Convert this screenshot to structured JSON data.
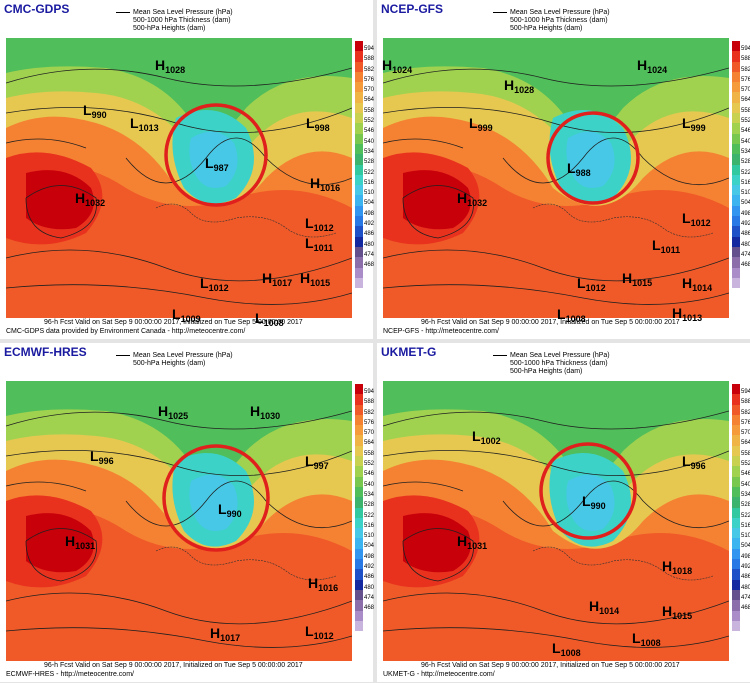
{
  "colors": {
    "colorbar": [
      "#c8000a",
      "#e8321e",
      "#f05a28",
      "#f58232",
      "#f59b3c",
      "#f0b446",
      "#e6c850",
      "#c8d250",
      "#a0d250",
      "#78c850",
      "#50be5a",
      "#3cb46e",
      "#32c8a0",
      "#3cd2c8",
      "#46c8e6",
      "#3cb4f0",
      "#3296f0",
      "#2878e6",
      "#1e50c8",
      "#1428a0",
      "#64508c",
      "#8c6eaa",
      "#aa8cc8",
      "#c8b4dc",
      "#ffffff"
    ],
    "circle": "#e0201c",
    "label": "#1a1aa0"
  },
  "colorbar_labels": [
    "594",
    "588",
    "582",
    "576",
    "570",
    "564",
    "558",
    "552",
    "546",
    "540",
    "534",
    "528",
    "522",
    "516",
    "510",
    "504",
    "498",
    "492",
    "486",
    "480",
    "474",
    "468"
  ],
  "panels": [
    {
      "name": "CMC-GDPS",
      "legend": [
        "Mean Sea Level Pressure (hPa)",
        "500-1000 hPa Thickness (dam)",
        "500-hPa Heights (dam)"
      ],
      "footer1": "96-h Fcst Valid on Sat Sep  9 00:00:00 2017, Initialized on Tue Sep  5 00:00:00 2017",
      "footer2": "CMC-GDPS data provided by Environment Canada - http://meteocentre.com/",
      "pressure_centers": [
        {
          "type": "H",
          "value": "1028"
        },
        {
          "type": "L",
          "value": "990"
        },
        {
          "type": "L",
          "value": "1013"
        },
        {
          "type": "L",
          "value": "998"
        },
        {
          "type": "L",
          "value": "987"
        },
        {
          "type": "H",
          "value": "1032"
        },
        {
          "type": "H",
          "value": "1016"
        },
        {
          "type": "L",
          "value": "1012"
        },
        {
          "type": "L",
          "value": "1011"
        },
        {
          "type": "L",
          "value": "1012"
        },
        {
          "type": "H",
          "value": "1017"
        },
        {
          "type": "H",
          "value": "1015"
        },
        {
          "type": "L",
          "value": "1009"
        },
        {
          "type": "L",
          "value": "1008"
        }
      ]
    },
    {
      "name": "NCEP-GFS",
      "legend": [
        "Mean Sea Level Pressure (hPa)",
        "500-1000 hPa Thickness (dam)",
        "500-hPa Heights (dam)"
      ],
      "footer1": "96-h Fcst Valid on Sat Sep  9 00:00:00 2017, Initialized on Tue Sep  5 00:00:00 2017",
      "footer2": "NCEP-GFS - http://meteocentre.com/",
      "pressure_centers": [
        {
          "type": "H",
          "value": "1024"
        },
        {
          "type": "H",
          "value": "1028"
        },
        {
          "type": "H",
          "value": "1024"
        },
        {
          "type": "L",
          "value": "999"
        },
        {
          "type": "L",
          "value": "999"
        },
        {
          "type": "L",
          "value": "988"
        },
        {
          "type": "H",
          "value": "1032"
        },
        {
          "type": "L",
          "value": "1012"
        },
        {
          "type": "L",
          "value": "1011"
        },
        {
          "type": "L",
          "value": "1012"
        },
        {
          "type": "H",
          "value": "1015"
        },
        {
          "type": "H",
          "value": "1014"
        },
        {
          "type": "L",
          "value": "1008"
        },
        {
          "type": "H",
          "value": "1013"
        }
      ]
    },
    {
      "name": "ECMWF-HRES",
      "legend": [
        "Mean Sea Level Pressure (hPa)",
        "500-hPa Heights (dam)"
      ],
      "footer1": "96-h Fcst Valid on Sat Sep  9 00:00:00 2017, Initialized on Tue Sep  5 00:00:00 2017",
      "footer2": "ECMWF-HRES - http://meteocentre.com/",
      "pressure_centers": [
        {
          "type": "H",
          "value": "1025"
        },
        {
          "type": "H",
          "value": "1030"
        },
        {
          "type": "L",
          "value": "996"
        },
        {
          "type": "L",
          "value": "997"
        },
        {
          "type": "L",
          "value": "990"
        },
        {
          "type": "H",
          "value": "1031"
        },
        {
          "type": "H",
          "value": "1016"
        },
        {
          "type": "H",
          "value": "1017"
        },
        {
          "type": "L",
          "value": "1012"
        }
      ]
    },
    {
      "name": "UKMET-G",
      "legend": [
        "Mean Sea Level Pressure (hPa)",
        "500-1000 hPa Thickness (dam)",
        "500-hPa Heights (dam)"
      ],
      "footer1": "96-h Fcst Valid on Sat Sep  9 00:00:00 2017, Initialized on Tue Sep  5 00:00:00 2017",
      "footer2": "UKMET-G - http://meteocentre.com/",
      "pressure_centers": [
        {
          "type": "L",
          "value": "1002"
        },
        {
          "type": "L",
          "value": "996"
        },
        {
          "type": "L",
          "value": "990"
        },
        {
          "type": "H",
          "value": "1031"
        },
        {
          "type": "H",
          "value": "1018"
        },
        {
          "type": "H",
          "value": "1014"
        },
        {
          "type": "H",
          "value": "1015"
        },
        {
          "type": "L",
          "value": "1008"
        },
        {
          "type": "L",
          "value": "1008"
        }
      ]
    }
  ]
}
